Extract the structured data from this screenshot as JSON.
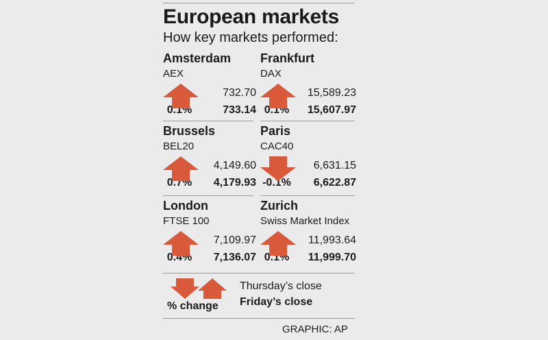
{
  "chart_data": {
    "type": "table",
    "title": "European markets",
    "subtitle": "How key markets performed:",
    "markets": [
      {
        "city": "Amsterdam",
        "index": "AEX",
        "direction": "up",
        "pct_change": "0.1%",
        "thursday_close": "732.70",
        "friday_close": "733.14"
      },
      {
        "city": "Frankfurt",
        "index": "DAX",
        "direction": "up",
        "pct_change": "0.1%",
        "thursday_close": "15,589.23",
        "friday_close": "15,607.97"
      },
      {
        "city": "Brussels",
        "index": "BEL20",
        "direction": "up",
        "pct_change": "0.7%",
        "thursday_close": "4,149.60",
        "friday_close": "4,179.93"
      },
      {
        "city": "Paris",
        "index": "CAC40",
        "direction": "down",
        "pct_change": "-0.1%",
        "thursday_close": "6,631.15",
        "friday_close": "6,622.87"
      },
      {
        "city": "London",
        "index": "FTSE 100",
        "direction": "up",
        "pct_change": "0.4%",
        "thursday_close": "7,109.97",
        "friday_close": "7,136.07"
      },
      {
        "city": "Zurich",
        "index": "Swiss Market Index",
        "direction": "up",
        "pct_change": "0.1%",
        "thursday_close": "11,993.64",
        "friday_close": "11,999.70"
      }
    ],
    "legend": {
      "pct_label": "% change",
      "thursday_label": "Thursday’s close",
      "friday_label": "Friday’s close"
    },
    "credit": "GRAPHIC: AP"
  },
  "colors": {
    "arrow": "#d9593b",
    "background": "#ebebeb",
    "rule": "#9a9a9a",
    "text": "#1a1a1a"
  },
  "icons": {
    "up": "up-arrow-icon",
    "down": "down-arrow-icon"
  }
}
